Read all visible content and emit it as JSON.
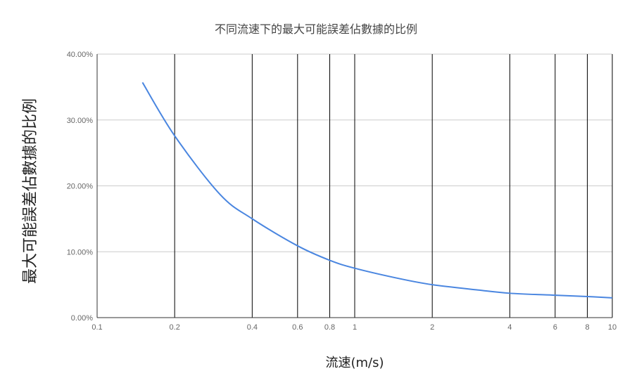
{
  "chart_data": {
    "type": "line",
    "title": "不同流速下的最大可能誤差佔數據的比例",
    "xlabel": "流速(m/s)",
    "ylabel": "最大可能誤差佔數據的比例",
    "x_scale": "log",
    "xlim": [
      0.1,
      10
    ],
    "ylim": [
      0,
      0.4
    ],
    "x_ticks": [
      0.1,
      0.2,
      0.4,
      0.6,
      0.8,
      1,
      2,
      4,
      6,
      8,
      10
    ],
    "x_tick_labels": [
      "0.1",
      "0.2",
      "0.4",
      "0.6",
      "0.8",
      "1",
      "2",
      "4",
      "6",
      "8",
      "10"
    ],
    "y_ticks": [
      0,
      0.1,
      0.2,
      0.3,
      0.4
    ],
    "y_tick_labels": [
      "0.00%",
      "10.00%",
      "20.00%",
      "30.00%",
      "40.00%"
    ],
    "grid": "vertical black lines at x ticks, horizontal gray lines at y ticks",
    "legend": "none",
    "series": [
      {
        "color": "#4a86e0",
        "x": [
          0.15,
          0.2,
          0.3,
          0.4,
          0.6,
          0.8,
          1,
          1.5,
          2,
          3,
          4,
          6,
          8,
          10
        ],
        "y": [
          0.357,
          0.276,
          0.187,
          0.15,
          0.109,
          0.087,
          0.075,
          0.059,
          0.05,
          0.042,
          0.037,
          0.034,
          0.032,
          0.03
        ]
      }
    ]
  }
}
